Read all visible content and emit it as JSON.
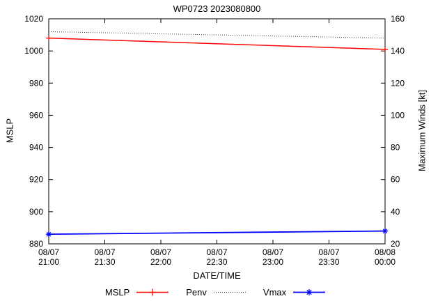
{
  "title": "WP0723 2023080800",
  "axis_labels": {
    "y_left": "MSLP",
    "y_right": "Maximum Winds [kt]",
    "x": "DATE/TIME"
  },
  "legend": {
    "items": [
      {
        "label": "MSLP",
        "color": "#ff0000",
        "line": "solid",
        "marker": "plus"
      },
      {
        "label": "Penv",
        "color": "#404040",
        "line": "dotted",
        "marker": "none"
      },
      {
        "label": "Vmax",
        "color": "#0000ff",
        "line": "solid",
        "marker": "asterisk"
      }
    ]
  },
  "chart_data": {
    "type": "line",
    "title": "WP0723 2023080800",
    "xlabel": "DATE/TIME",
    "ylabel_left": "MSLP",
    "ylabel_right": "Maximum Winds [kt]",
    "grid": false,
    "legend_position": "bottom-center",
    "x_range": [
      0,
      180
    ],
    "x_ticks": [
      0,
      30,
      60,
      90,
      120,
      150,
      180
    ],
    "x_tick_labels": [
      [
        "08/07",
        "21:00"
      ],
      [
        "08/07",
        "21:30"
      ],
      [
        "08/07",
        "22:00"
      ],
      [
        "08/07",
        "22:30"
      ],
      [
        "08/07",
        "23:00"
      ],
      [
        "08/07",
        "23:30"
      ],
      [
        "08/08",
        "00:00"
      ]
    ],
    "y_left": {
      "label": "MSLP",
      "min": 880,
      "max": 1020,
      "ticks": [
        880,
        900,
        920,
        940,
        960,
        980,
        1000,
        1020
      ]
    },
    "y_right": {
      "label": "Maximum Winds [kt]",
      "min": 20,
      "max": 160,
      "ticks": [
        20,
        40,
        60,
        80,
        100,
        120,
        140,
        160
      ]
    },
    "series": [
      {
        "name": "MSLP",
        "axis": "left",
        "color": "#ff0000",
        "line": "solid",
        "marker": "plus",
        "width": 1.5,
        "points": [
          {
            "time": "08/07 21:00",
            "x": 0,
            "y": 1008
          },
          {
            "time": "08/08 00:00",
            "x": 180,
            "y": 1001
          }
        ]
      },
      {
        "name": "Penv",
        "axis": "left",
        "color": "#404040",
        "line": "dotted",
        "marker": "none",
        "width": 1,
        "points": [
          {
            "time": "08/07 21:00",
            "x": 0,
            "y": 1012
          },
          {
            "time": "08/08 00:00",
            "x": 180,
            "y": 1008
          }
        ]
      },
      {
        "name": "Vmax",
        "axis": "right",
        "color": "#0000ff",
        "line": "solid",
        "marker": "asterisk",
        "width": 1.8,
        "points": [
          {
            "time": "08/07 21:00",
            "x": 0,
            "y": 26
          },
          {
            "time": "08/08 00:00",
            "x": 180,
            "y": 28
          }
        ]
      }
    ]
  }
}
